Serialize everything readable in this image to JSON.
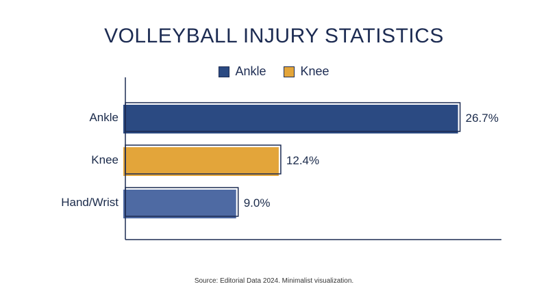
{
  "chart_data": {
    "type": "bar",
    "orientation": "horizontal",
    "title": "VOLLEYBALL INJURY STATISTICS",
    "categories": [
      "Ankle",
      "Knee",
      "Hand/Wrist"
    ],
    "values": [
      26.7,
      12.4,
      9.0
    ],
    "value_labels": [
      "26.7%",
      "12.4%",
      "9.0%"
    ],
    "colors": [
      "#2b4a82",
      "#e3a53a",
      "#4e6aa3"
    ],
    "outline_color": "#1c2b52",
    "legend": [
      {
        "label": "Ankle",
        "color": "#2b4a82"
      },
      {
        "label": "Knee",
        "color": "#e3a53a"
      }
    ],
    "legend_position": "top-center",
    "xlabel": "",
    "ylabel": "",
    "xlim": [
      0,
      30
    ],
    "grid": false
  },
  "footer": {
    "source": "Source: Editorial Data 2024. Minimalist visualization."
  }
}
